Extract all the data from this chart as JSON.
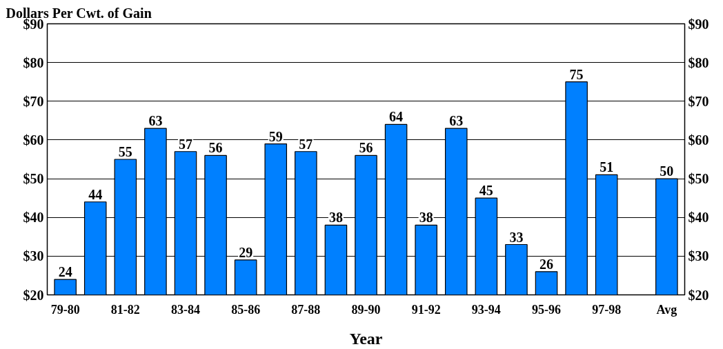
{
  "chart_data": {
    "type": "bar",
    "title": "Dollars Per Cwt. of Gain",
    "xlabel": "Year",
    "categories": [
      "79-80",
      null,
      "81-82",
      null,
      "83-84",
      null,
      "85-86",
      null,
      "87-88",
      null,
      "89-90",
      null,
      "91-92",
      null,
      "93-94",
      null,
      "95-96",
      null,
      "97-98",
      null,
      "Avg"
    ],
    "values": [
      24,
      44,
      55,
      63,
      57,
      56,
      29,
      59,
      57,
      38,
      56,
      64,
      38,
      63,
      45,
      33,
      26,
      75,
      51,
      null,
      50
    ],
    "color": "#0080ff",
    "ylim": [
      20,
      90
    ],
    "yticks": [
      {
        "value": 20,
        "label": "$20"
      },
      {
        "value": 30,
        "label": "$30"
      },
      {
        "value": 40,
        "label": "$40"
      },
      {
        "value": 50,
        "label": "$50"
      },
      {
        "value": 60,
        "label": "$60"
      },
      {
        "value": 70,
        "label": "$70"
      },
      {
        "value": 80,
        "label": "$80"
      },
      {
        "value": 90,
        "label": "$90"
      }
    ],
    "y2lim": [
      20,
      90
    ],
    "y2ticks": [
      {
        "value": 20,
        "label": "$20"
      },
      {
        "value": 30,
        "label": "$30"
      },
      {
        "value": 40,
        "label": "$40"
      },
      {
        "value": 50,
        "label": "$50"
      },
      {
        "value": 60,
        "label": "$60"
      },
      {
        "value": 70,
        "label": "$70"
      },
      {
        "value": 80,
        "label": "$80"
      },
      {
        "value": 90,
        "label": "$90"
      }
    ],
    "grid": "y",
    "data_labels": true
  }
}
